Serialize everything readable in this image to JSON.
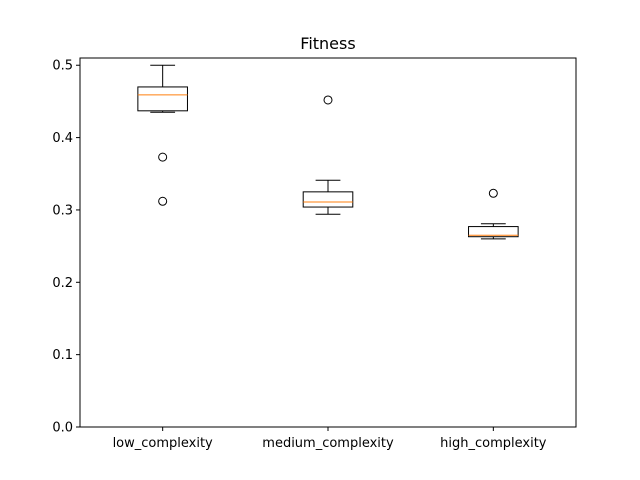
{
  "chart_data": {
    "type": "box",
    "title": "Fitness",
    "xlabel": "",
    "ylabel": "",
    "categories": [
      "low_complexity",
      "medium_complexity",
      "high_complexity"
    ],
    "ylim": [
      0.0,
      0.51
    ],
    "yticks": [
      0.0,
      0.1,
      0.2,
      0.3,
      0.4,
      0.5
    ],
    "ytick_labels": [
      "0.0",
      "0.1",
      "0.2",
      "0.3",
      "0.4",
      "0.5"
    ],
    "grid": false,
    "legend": "none",
    "boxes": [
      {
        "category": "low_complexity",
        "whisker_low": 0.435,
        "q1": 0.437,
        "median": 0.459,
        "q3": 0.47,
        "whisker_high": 0.5,
        "outliers": [
          0.373,
          0.312
        ]
      },
      {
        "category": "medium_complexity",
        "whisker_low": 0.294,
        "q1": 0.304,
        "median": 0.311,
        "q3": 0.325,
        "whisker_high": 0.341,
        "outliers": [
          0.452
        ]
      },
      {
        "category": "high_complexity",
        "whisker_low": 0.26,
        "q1": 0.263,
        "median": 0.265,
        "q3": 0.277,
        "whisker_high": 0.281,
        "outliers": [
          0.323
        ]
      }
    ],
    "colors": {
      "box": "#000000",
      "median": "#ff7f0e",
      "outlier": "#000000",
      "axes": "#000000",
      "background": "#ffffff"
    }
  }
}
